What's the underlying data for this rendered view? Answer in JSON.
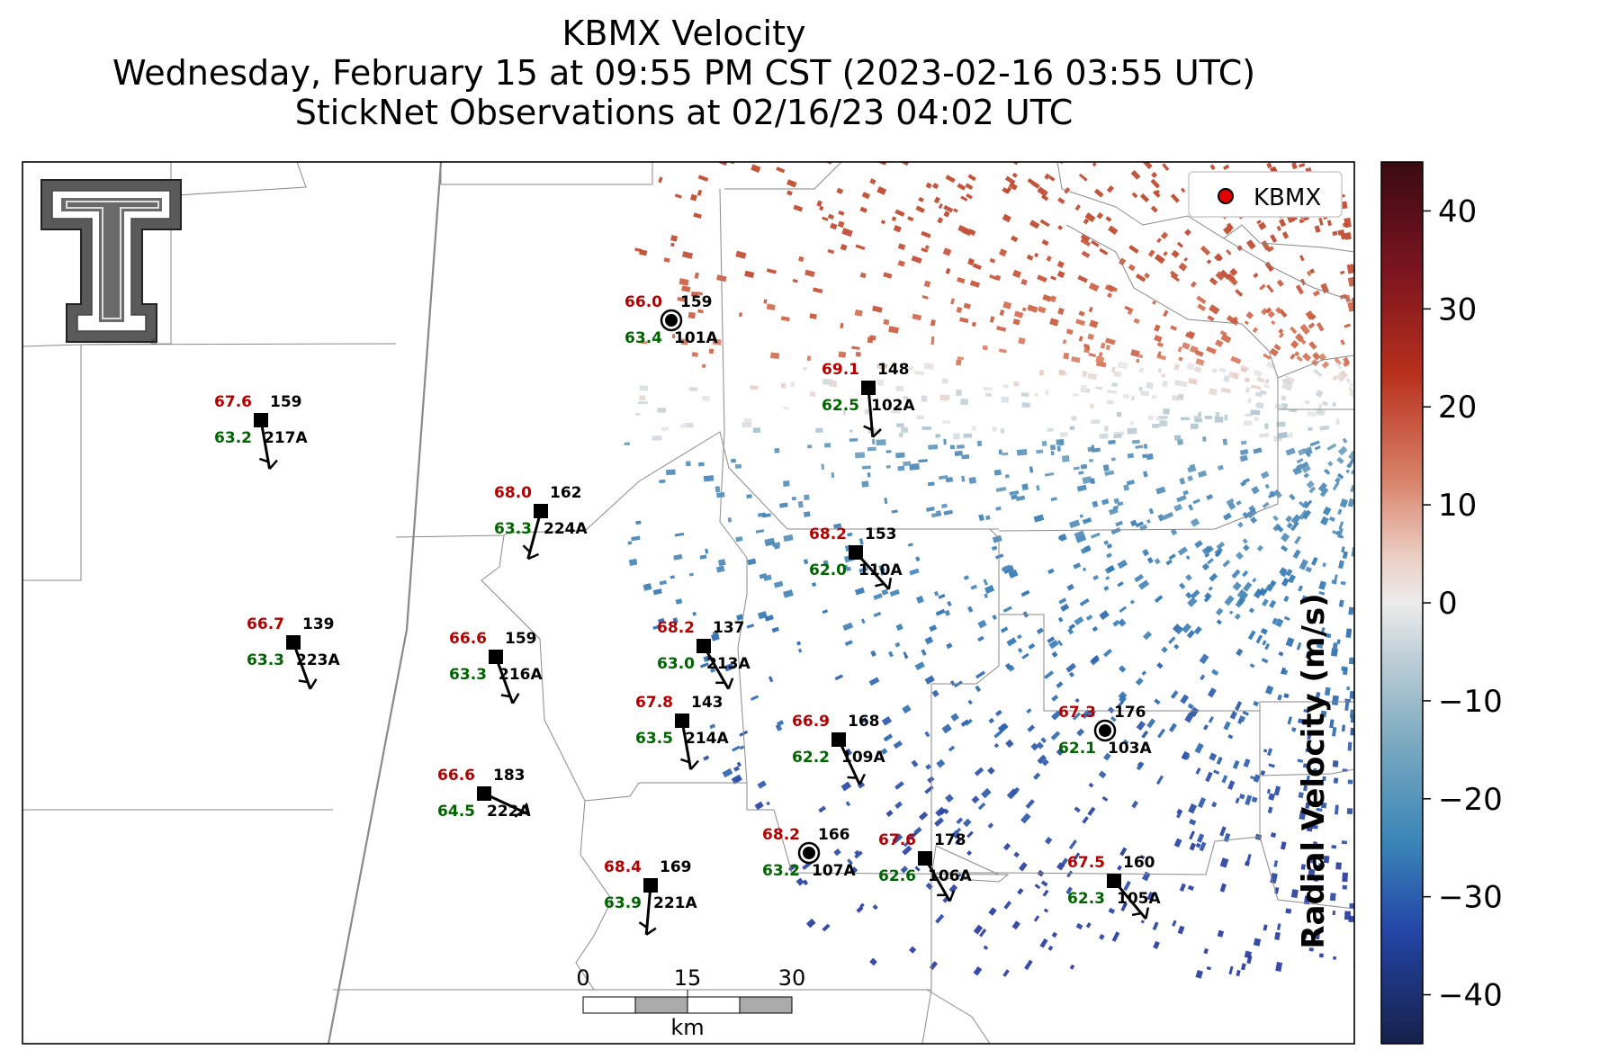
{
  "title": {
    "line1": "KBMX Velocity",
    "line2": "Wednesday, February 15 at 09:55 PM CST (2023-02-16 03:55 UTC)",
    "line3": "StickNet Observations at 02/16/23 04:02 UTC"
  },
  "legend": {
    "label": "KBMX",
    "marker_color": "#e00000"
  },
  "colorbar": {
    "label": "Radial Velocity (m/s)",
    "ticks": [
      "40",
      "30",
      "20",
      "10",
      "0",
      "−10",
      "−20",
      "−30",
      "−40"
    ],
    "tick_values": [
      40,
      30,
      20,
      10,
      0,
      -10,
      -20,
      -30,
      -40
    ],
    "range": [
      -45,
      45
    ]
  },
  "scale_bar": {
    "ticks": [
      "0",
      "15",
      "30"
    ],
    "unit": "km"
  },
  "logo": {
    "name": "texas-tech-double-t-logo",
    "registered": "®"
  },
  "colors": {
    "temperature": "#b30000",
    "dewpoint": "#006400",
    "station": "#000000"
  },
  "stations": [
    {
      "id": "101A",
      "temp": "66.0",
      "dew": "63.4",
      "pressure": "159",
      "calm": true
    },
    {
      "id": "102A",
      "temp": "69.1",
      "dew": "62.5",
      "pressure": "148",
      "calm": false
    },
    {
      "id": "217A",
      "temp": "67.6",
      "dew": "63.2",
      "pressure": "159",
      "calm": false
    },
    {
      "id": "224A",
      "temp": "68.0",
      "dew": "63.3",
      "pressure": "162",
      "calm": false
    },
    {
      "id": "110A",
      "temp": "68.2",
      "dew": "62.0",
      "pressure": "153",
      "calm": false
    },
    {
      "id": "223A",
      "temp": "66.7",
      "dew": "63.3",
      "pressure": "139",
      "calm": false
    },
    {
      "id": "216A",
      "temp": "66.6",
      "dew": "63.3",
      "pressure": "159",
      "calm": false
    },
    {
      "id": "213A",
      "temp": "68.2",
      "dew": "63.0",
      "pressure": "137",
      "calm": false
    },
    {
      "id": "214A",
      "temp": "67.8",
      "dew": "63.5",
      "pressure": "143",
      "calm": false
    },
    {
      "id": "109A",
      "temp": "66.9",
      "dew": "62.2",
      "pressure": "168",
      "calm": false
    },
    {
      "id": "103A",
      "temp": "67.3",
      "dew": "62.1",
      "pressure": "176",
      "calm": true
    },
    {
      "id": "222A",
      "temp": "66.6",
      "dew": "64.5",
      "pressure": "183",
      "calm": false
    },
    {
      "id": "107A",
      "temp": "68.2",
      "dew": "63.2",
      "pressure": "166",
      "calm": true
    },
    {
      "id": "106A",
      "temp": "67.6",
      "dew": "62.6",
      "pressure": "178",
      "calm": false
    },
    {
      "id": "221A",
      "temp": "68.4",
      "dew": "63.9",
      "pressure": "169",
      "calm": false
    },
    {
      "id": "105A",
      "temp": "67.5",
      "dew": "62.3",
      "pressure": "160",
      "calm": false
    }
  ]
}
